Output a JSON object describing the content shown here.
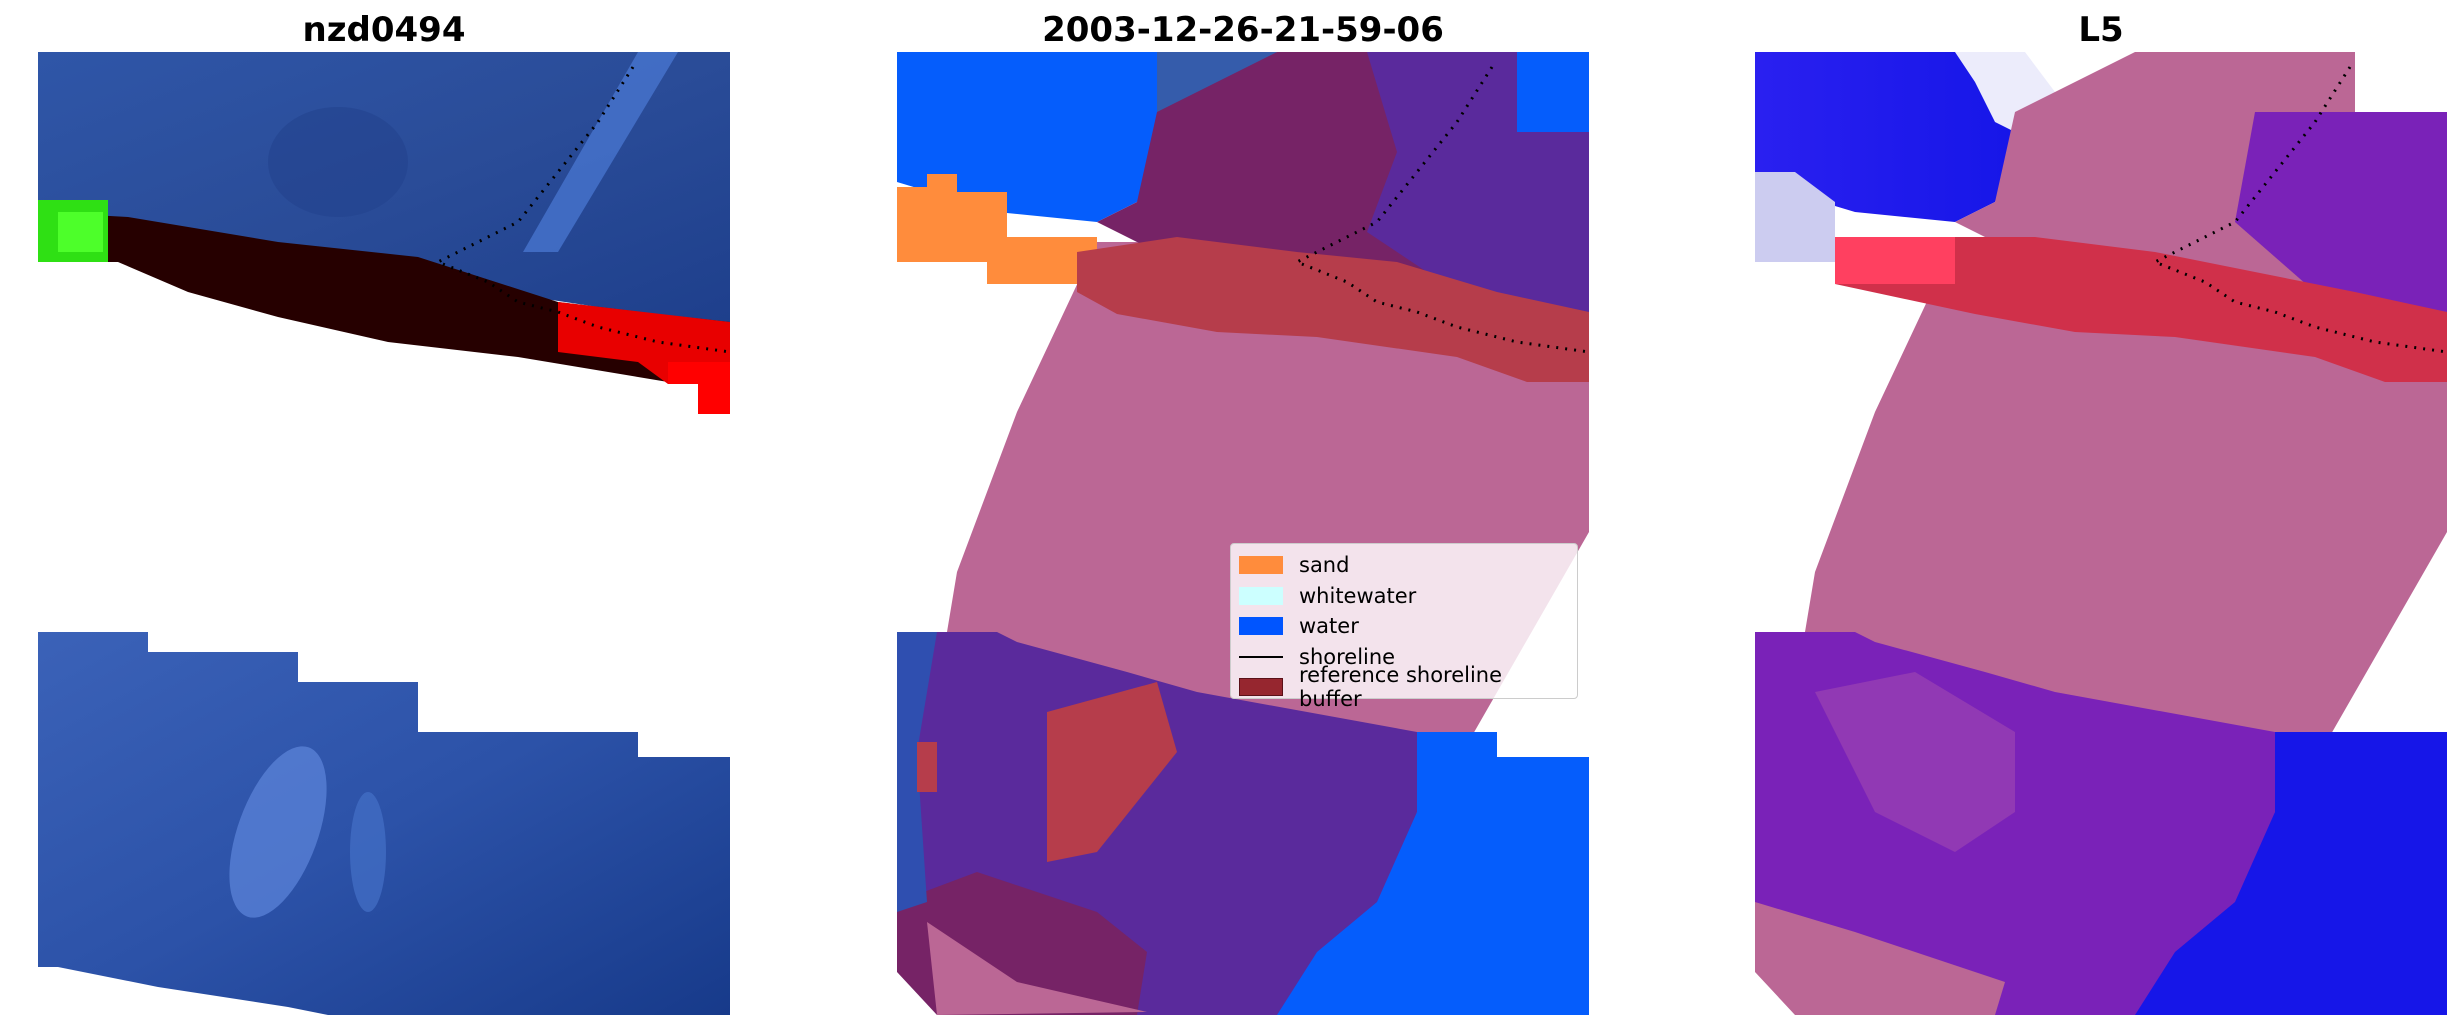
{
  "panels": [
    {
      "title": "nzd0494"
    },
    {
      "title": "2003-12-26-21-59-06"
    },
    {
      "title": "L5"
    }
  ],
  "legend": {
    "items": [
      {
        "label": "sand",
        "color": "#ff8c3c"
      },
      {
        "label": "whitewater",
        "color": "#ccffff"
      },
      {
        "label": "water",
        "color": "#0055ff"
      },
      {
        "label": "shoreline",
        "color": "#000000"
      },
      {
        "label": "reference shoreline buffer",
        "color": "#96262f"
      }
    ]
  }
}
